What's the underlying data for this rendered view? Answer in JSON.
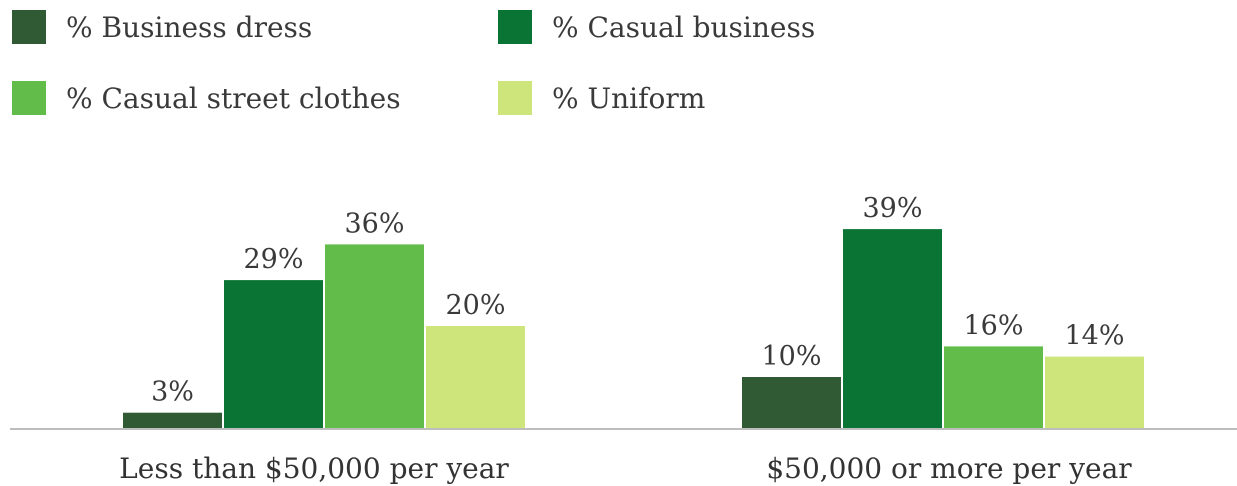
{
  "chart_data": {
    "type": "bar",
    "categories": [
      "Less than $50,000 per year",
      "$50,000 or more per year"
    ],
    "series": [
      {
        "name": "% Business dress",
        "values": [
          3,
          10
        ],
        "labels": [
          "3%",
          "10%"
        ],
        "color": "#2f5a34"
      },
      {
        "name": "% Casual business",
        "values": [
          29,
          39
        ],
        "labels": [
          "29%",
          "39%"
        ],
        "color": "#0a7434"
      },
      {
        "name": "% Casual street clothes",
        "values": [
          36,
          16
        ],
        "labels": [
          "36%",
          "16%"
        ],
        "color": "#62bc4a"
      },
      {
        "name": "% Uniform",
        "values": [
          20,
          14
        ],
        "labels": [
          "20%",
          "14%"
        ],
        "color": "#cde57a"
      }
    ],
    "ylim": [
      0,
      45
    ],
    "grid": false,
    "legend_position": "top-left",
    "title": "",
    "xlabel": "",
    "ylabel": ""
  }
}
